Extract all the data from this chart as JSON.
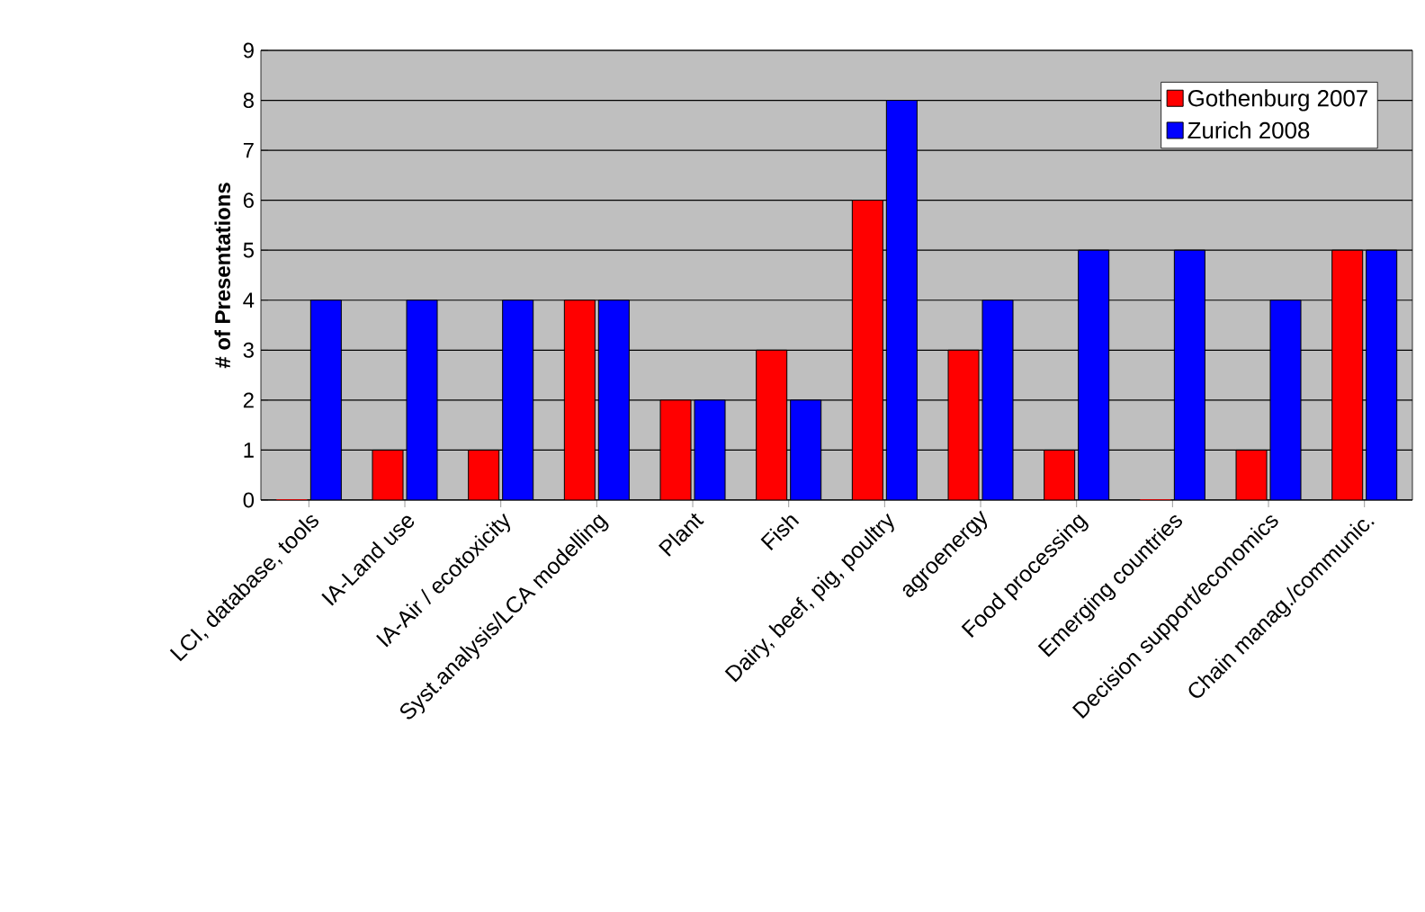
{
  "chart_data": {
    "type": "bar",
    "ylabel": "# of Presentations",
    "categories": [
      "LCI, database, tools",
      "IA-Land use",
      "IA-Air / ecotoxicity",
      "Syst.analysis/LCA modelling",
      "Plant",
      "Fish",
      "Dairy, beef, pig, poultry",
      "agroenergy",
      "Food processing",
      "Emerging countries",
      "Decision support/economics",
      "Chain manag./communic."
    ],
    "series": [
      {
        "name": "Gothenburg 2007",
        "color": "#ff0000",
        "values": [
          0,
          1,
          1,
          4,
          2,
          3,
          6,
          3,
          1,
          0,
          1,
          5
        ]
      },
      {
        "name": "Zurich 2008",
        "color": "#0000ff",
        "values": [
          4,
          4,
          4,
          4,
          2,
          2,
          8,
          4,
          5,
          5,
          4,
          5
        ]
      }
    ],
    "ylim": [
      0,
      9
    ],
    "yticks": [
      0,
      1,
      2,
      3,
      4,
      5,
      6,
      7,
      8,
      9
    ],
    "grid": "y",
    "legend": "top right"
  }
}
